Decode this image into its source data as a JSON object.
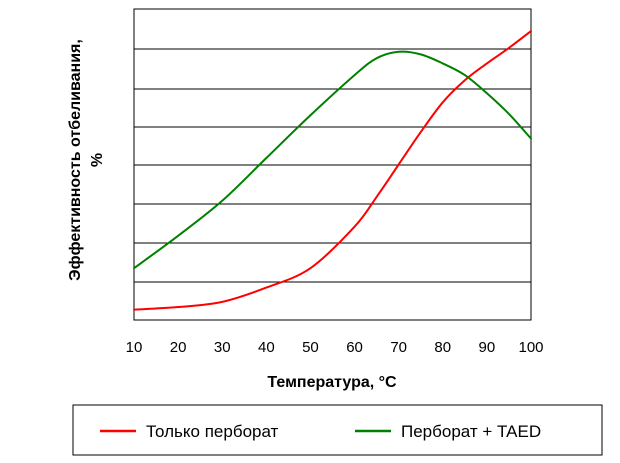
{
  "chart_data": {
    "type": "line",
    "xlabel": "Температура, °C",
    "ylabel": "Эффективность отбеливания, %",
    "xlim": [
      10,
      100
    ],
    "x_ticks": [
      "10",
      "20",
      "30",
      "40",
      "50",
      "60",
      "70",
      "80",
      "90",
      "100"
    ],
    "grid": "horizontal",
    "legend_position": "bottom",
    "series": [
      {
        "name": "Только перборат",
        "color": "#ff0000",
        "x": [
          10,
          20,
          30,
          40,
          50,
          60,
          65,
          70,
          75,
          80,
          85,
          90,
          95,
          100
        ],
        "y": [
          0.8,
          1.0,
          1.4,
          2.5,
          4.0,
          7.2,
          9.5,
          12.0,
          14.5,
          16.8,
          18.5,
          19.8,
          21.0,
          22.3
        ]
      },
      {
        "name": "Перборат + TAED",
        "color": "#008000",
        "x": [
          10,
          20,
          30,
          40,
          50,
          60,
          65,
          70,
          75,
          80,
          85,
          90,
          95,
          100
        ],
        "y": [
          4.0,
          6.5,
          9.2,
          12.5,
          15.8,
          18.9,
          20.2,
          20.7,
          20.5,
          19.8,
          18.9,
          17.5,
          15.9,
          14.0
        ]
      }
    ]
  }
}
